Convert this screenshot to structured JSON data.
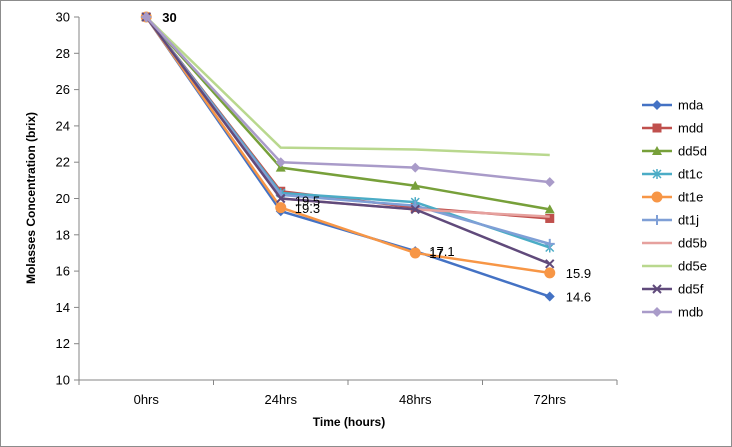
{
  "chart_data": {
    "type": "line",
    "categories": [
      "0hrs",
      "24hrs",
      "48hrs",
      "72hrs"
    ],
    "xlabel": "Time (hours)",
    "ylabel": "Molasses Concentration (brix)",
    "ylim": [
      10,
      30
    ],
    "yticks": [
      10,
      12,
      14,
      16,
      18,
      20,
      22,
      24,
      26,
      28,
      30
    ],
    "grid": false,
    "legend": "right",
    "series": [
      {
        "name": "mda",
        "color": "#4472C4",
        "marker": "diamond",
        "values": [
          30,
          19.3,
          17.1,
          14.6
        ]
      },
      {
        "name": "mdd",
        "color": "#C0504D",
        "marker": "square",
        "values": [
          30,
          20.4,
          19.5,
          18.9
        ]
      },
      {
        "name": "dd5d",
        "color": "#77A03A",
        "marker": "triangle",
        "values": [
          30,
          21.7,
          20.7,
          19.4
        ]
      },
      {
        "name": "dt1c",
        "color": "#4BACC6",
        "marker": "star",
        "values": [
          30,
          20.3,
          19.8,
          17.3
        ]
      },
      {
        "name": "dt1e",
        "color": "#F79646",
        "marker": "circle",
        "values": [
          30,
          19.5,
          17.0,
          15.9
        ]
      },
      {
        "name": "dt1j",
        "color": "#7F9FD6",
        "marker": "plus",
        "values": [
          30,
          20.2,
          19.6,
          17.5
        ]
      },
      {
        "name": "dd5b",
        "color": "#E6A19E",
        "marker": "none",
        "values": [
          30,
          20.0,
          19.4,
          19.0
        ]
      },
      {
        "name": "dd5e",
        "color": "#B9D88E",
        "marker": "none",
        "values": [
          30,
          22.8,
          22.7,
          22.4
        ]
      },
      {
        "name": "dd5f",
        "color": "#604A7B",
        "marker": "x",
        "values": [
          30,
          20.0,
          19.4,
          16.4
        ]
      },
      {
        "name": "mdb",
        "color": "#A99BC9",
        "marker": "diamond",
        "values": [
          30,
          22.0,
          21.7,
          20.9
        ]
      }
    ],
    "annotations": [
      {
        "text": "30",
        "category": "0hrs",
        "value": 30
      },
      {
        "text": "19.5",
        "category": "24hrs",
        "value": 19.5
      },
      {
        "text": "19.3",
        "category": "24hrs",
        "value": 19.3
      },
      {
        "text": "17",
        "category": "48hrs",
        "value": 17.0
      },
      {
        "text": "17.1",
        "category": "48hrs",
        "value": 17.1
      },
      {
        "text": "15.9",
        "category": "72hrs",
        "value": 15.9
      },
      {
        "text": "14.6",
        "category": "72hrs",
        "value": 14.6
      }
    ]
  }
}
